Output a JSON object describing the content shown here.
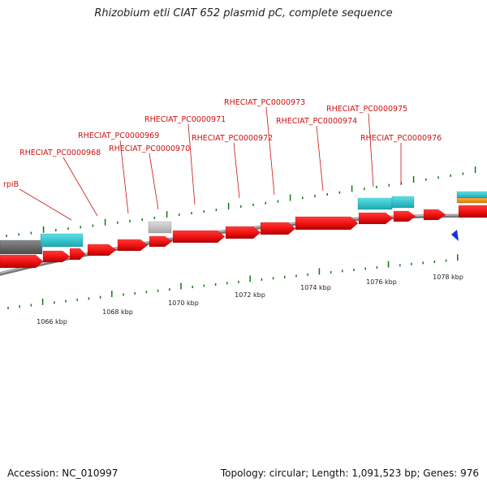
{
  "title": "Rhizobium etli CIAT 652 plasmid pC, complete sequence",
  "footer": {
    "accession": "Accession: NC_010997",
    "summary": "Topology: circular; Length: 1,091,523 bp; Genes: 976"
  },
  "gene_labels": [
    "rpiB",
    "RHECIAT_PC0000968",
    "RHECIAT_PC0000969",
    "RHECIAT_PC0000970",
    "RHECIAT_PC0000971",
    "RHECIAT_PC0000972",
    "RHECIAT_PC0000973",
    "RHECIAT_PC0000974",
    "RHECIAT_PC0000975",
    "RHECIAT_PC0000976"
  ],
  "kbp_labels": [
    "1066 kbp",
    "1068 kbp",
    "1070 kbp",
    "1072 kbp",
    "1074 kbp",
    "1076 kbp",
    "1078 kbp"
  ],
  "colors": {
    "gene": "#ee1111",
    "gene_dark": "#aa0000",
    "cds_bar": "#22c4cc",
    "pseudo": "#c0c0c0",
    "misc": "#ee8800",
    "other": "#1133dd",
    "backbone": "#888888",
    "tick": "#117711",
    "label": "#cc1111"
  }
}
